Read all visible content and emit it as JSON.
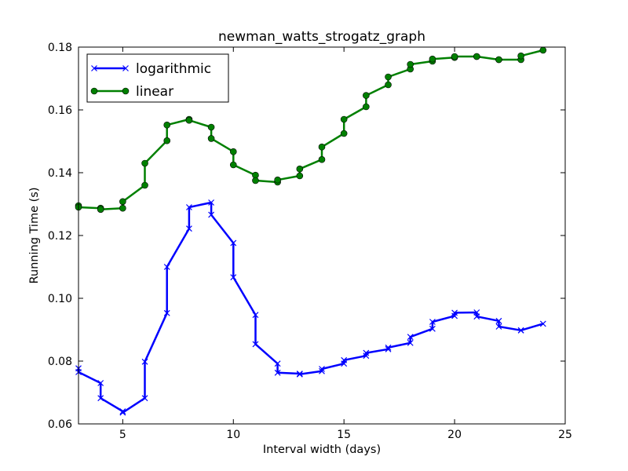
{
  "chart_data": {
    "type": "line",
    "title": "newman_watts_strogatz_graph",
    "xlabel": "Interval width (days)",
    "ylabel": "Running Time (s)",
    "xlim": [
      3,
      25
    ],
    "ylim": [
      0.06,
      0.18
    ],
    "xticks": [
      5,
      10,
      15,
      20,
      25
    ],
    "yticks": [
      0.06,
      0.08,
      0.1,
      0.12,
      0.14,
      0.16,
      0.18
    ],
    "ytick_labels": [
      "0.06",
      "0.08",
      "0.10",
      "0.12",
      "0.14",
      "0.16",
      "0.18"
    ],
    "grid": false,
    "legend_position": "top-left",
    "series": [
      {
        "name": "logarithmic",
        "color": "#0000ff",
        "marker": "x",
        "x": [
          3,
          3,
          4,
          4,
          5,
          5,
          6,
          6,
          7,
          7,
          8,
          8,
          9,
          9,
          10,
          10,
          11,
          11,
          12,
          12,
          13,
          13,
          14,
          14,
          15,
          15,
          16,
          16,
          17,
          17,
          18,
          18,
          19,
          19,
          20,
          20,
          21,
          21,
          22,
          22,
          23,
          23,
          24
        ],
        "y": [
          0.0777,
          0.0765,
          0.073,
          0.0682,
          0.064,
          0.0636,
          0.0682,
          0.0798,
          0.0953,
          0.11,
          0.1222,
          0.129,
          0.1305,
          0.1266,
          0.1176,
          0.1067,
          0.0947,
          0.0854,
          0.0792,
          0.0763,
          0.076,
          0.0758,
          0.0768,
          0.0775,
          0.0792,
          0.0803,
          0.0817,
          0.0826,
          0.0838,
          0.0843,
          0.0858,
          0.0877,
          0.0903,
          0.0925,
          0.0944,
          0.0954,
          0.0955,
          0.0942,
          0.0928,
          0.091,
          0.0898,
          0.0898,
          0.0919
        ]
      },
      {
        "name": "linear",
        "color": "#008000",
        "marker": "o",
        "x": [
          3,
          3,
          4,
          4,
          5,
          5,
          6,
          6,
          7,
          7,
          8,
          8,
          9,
          9,
          10,
          10,
          11,
          11,
          12,
          12,
          13,
          13,
          14,
          14,
          15,
          15,
          16,
          16,
          17,
          17,
          18,
          18,
          19,
          19,
          20,
          20,
          21,
          21,
          22,
          22,
          23,
          23,
          24
        ],
        "y": [
          0.1295,
          0.129,
          0.1287,
          0.1283,
          0.1287,
          0.1308,
          0.136,
          0.143,
          0.1502,
          0.1552,
          0.157,
          0.1567,
          0.1545,
          0.1509,
          0.1467,
          0.1425,
          0.1392,
          0.1375,
          0.137,
          0.1377,
          0.139,
          0.1412,
          0.1442,
          0.1482,
          0.1525,
          0.157,
          0.161,
          0.1646,
          0.168,
          0.1705,
          0.173,
          0.1745,
          0.1755,
          0.1762,
          0.1767,
          0.177,
          0.177,
          0.177,
          0.176,
          0.176,
          0.176,
          0.1772,
          0.179
        ]
      }
    ]
  }
}
